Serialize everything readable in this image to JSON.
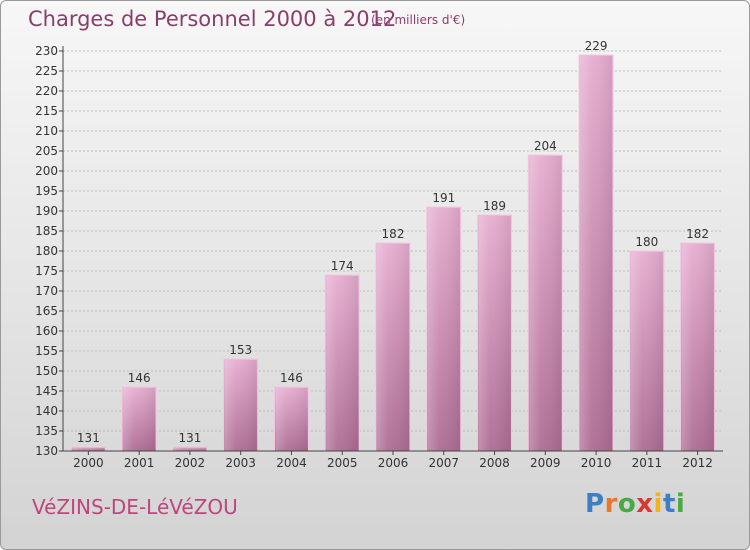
{
  "title": "Charges de Personnel 2000 à 2012",
  "subtitle": "(en milliers d'€)",
  "place_name": "VéZINS-DE-LéVéZOU",
  "logo": {
    "letters": [
      "P",
      "r",
      "o",
      "x",
      "i",
      "t",
      "i"
    ],
    "colors": [
      "#3b7fc4",
      "#e8762c",
      "#49a942",
      "#d9382e",
      "#f2b31c",
      "#3b7fc4",
      "#49a942"
    ]
  },
  "colors": {
    "bar_light": "#e7aed0",
    "bar_dark": "#ae6d94",
    "axis": "#444444",
    "grid": "#bdbdbd",
    "text": "#333333"
  },
  "chart_data": {
    "type": "bar",
    "categories": [
      "2000",
      "2001",
      "2002",
      "2003",
      "2004",
      "2005",
      "2006",
      "2007",
      "2008",
      "2009",
      "2010",
      "2011",
      "2012"
    ],
    "values": [
      131,
      146,
      131,
      153,
      146,
      174,
      182,
      191,
      189,
      204,
      229,
      180,
      182
    ],
    "data_labels": [
      "131",
      "146",
      "131",
      "153",
      "146",
      "174",
      "182",
      "191",
      "189",
      "204",
      "229",
      "180",
      "182"
    ],
    "ylim": [
      130,
      230
    ],
    "yticks": [
      130,
      135,
      140,
      145,
      150,
      155,
      160,
      165,
      170,
      175,
      180,
      185,
      190,
      195,
      200,
      205,
      210,
      215,
      220,
      225,
      230
    ],
    "grid": true,
    "xlabel": "",
    "ylabel": ""
  }
}
